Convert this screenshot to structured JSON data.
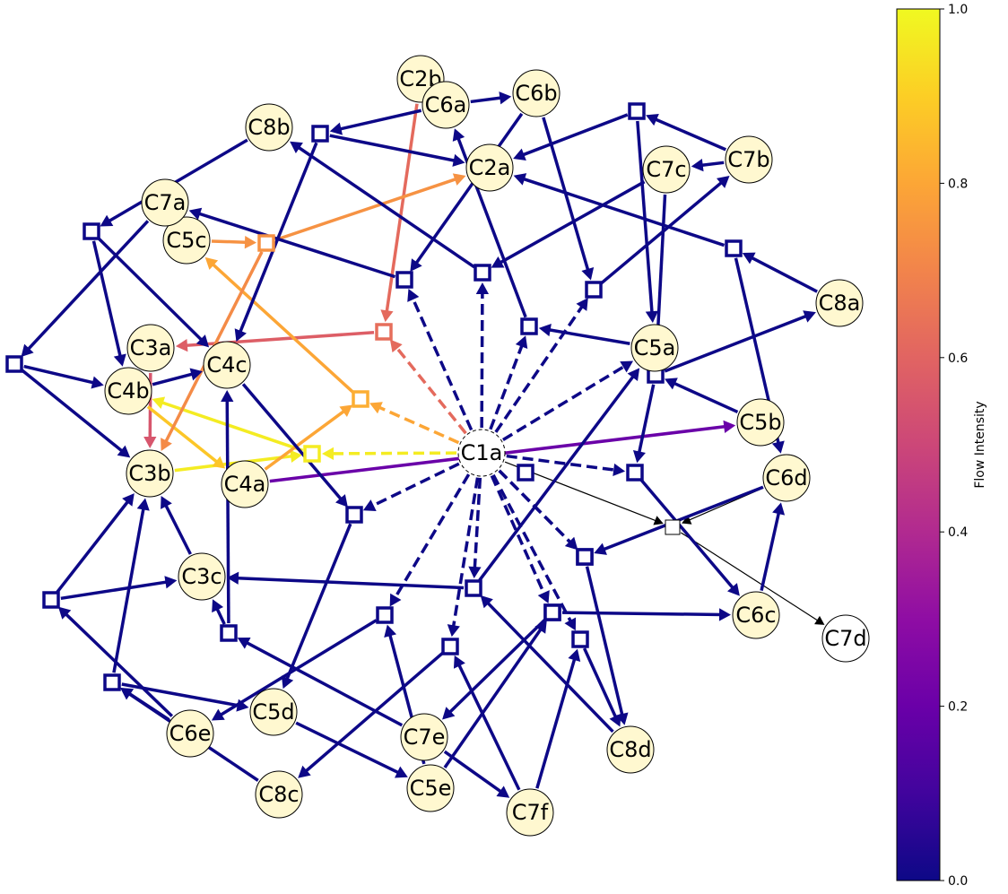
{
  "colorbar": {
    "label": "Flow Intensity",
    "ticks": [
      "0.0",
      "0.2",
      "0.4",
      "0.6",
      "0.8",
      "1.0"
    ],
    "tick_values": [
      0.0,
      0.2,
      0.4,
      0.6,
      0.8,
      1.0
    ],
    "colormap": "plasma"
  },
  "colors": {
    "concept_fill": "#fff8d0",
    "source_fill": "#ffffff",
    "neutral_edge": "#000000",
    "junction_default_stroke": "#0d0887"
  },
  "nodes": [
    {
      "id": "C1a",
      "label": "C1a",
      "kind": "source"
    },
    {
      "id": "C2a",
      "label": "C2a",
      "kind": "concept"
    },
    {
      "id": "C2b",
      "label": "C2b",
      "kind": "concept"
    },
    {
      "id": "C3a",
      "label": "C3a",
      "kind": "concept"
    },
    {
      "id": "C3b",
      "label": "C3b",
      "kind": "concept"
    },
    {
      "id": "C3c",
      "label": "C3c",
      "kind": "concept"
    },
    {
      "id": "C4a",
      "label": "C4a",
      "kind": "concept"
    },
    {
      "id": "C4b",
      "label": "C4b",
      "kind": "concept"
    },
    {
      "id": "C4c",
      "label": "C4c",
      "kind": "concept"
    },
    {
      "id": "C5a",
      "label": "C5a",
      "kind": "concept"
    },
    {
      "id": "C5b",
      "label": "C5b",
      "kind": "concept"
    },
    {
      "id": "C5c",
      "label": "C5c",
      "kind": "concept"
    },
    {
      "id": "C5d",
      "label": "C5d",
      "kind": "concept"
    },
    {
      "id": "C5e",
      "label": "C5e",
      "kind": "concept"
    },
    {
      "id": "C6a",
      "label": "C6a",
      "kind": "concept"
    },
    {
      "id": "C6b",
      "label": "C6b",
      "kind": "concept"
    },
    {
      "id": "C6c",
      "label": "C6c",
      "kind": "concept"
    },
    {
      "id": "C6d",
      "label": "C6d",
      "kind": "concept"
    },
    {
      "id": "C6e",
      "label": "C6e",
      "kind": "concept"
    },
    {
      "id": "C7a",
      "label": "C7a",
      "kind": "concept"
    },
    {
      "id": "C7b",
      "label": "C7b",
      "kind": "concept"
    },
    {
      "id": "C7c",
      "label": "C7c",
      "kind": "concept"
    },
    {
      "id": "C7d",
      "label": "C7d",
      "kind": "plain"
    },
    {
      "id": "C7e",
      "label": "C7e",
      "kind": "concept"
    },
    {
      "id": "C7f",
      "label": "C7f",
      "kind": "concept"
    },
    {
      "id": "C8a",
      "label": "C8a",
      "kind": "concept"
    },
    {
      "id": "C8b",
      "label": "C8b",
      "kind": "concept"
    },
    {
      "id": "C8c",
      "label": "C8c",
      "kind": "concept"
    },
    {
      "id": "C8d",
      "label": "C8d",
      "kind": "concept"
    }
  ],
  "junctions": [
    {
      "id": "J1",
      "intensity": 0.0
    },
    {
      "id": "J2",
      "intensity": 0.0
    },
    {
      "id": "J3",
      "intensity": 0.0
    },
    {
      "id": "J4",
      "intensity": 0.0
    },
    {
      "id": "J5",
      "intensity": 0.0
    },
    {
      "id": "J6",
      "intensity": 0.0
    },
    {
      "id": "J7",
      "intensity": 0.0
    },
    {
      "id": "J8",
      "intensity": 0.0
    },
    {
      "id": "J9",
      "intensity": 0.0
    },
    {
      "id": "J10",
      "intensity": 0.63
    },
    {
      "id": "J11",
      "intensity": 0.0
    },
    {
      "id": "J12",
      "intensity": 0.82
    },
    {
      "id": "J13",
      "intensity": 0.97
    },
    {
      "id": "J14",
      "intensity": 0.0
    },
    {
      "id": "J15",
      "intensity": 0.0
    },
    {
      "id": "J16",
      "intensity": 0.0
    },
    {
      "id": "J17",
      "intensity": 0.0
    },
    {
      "id": "J18",
      "intensity": 0.0
    },
    {
      "id": "J19",
      "intensity": 0.0
    },
    {
      "id": "J20",
      "intensity": 0.0
    },
    {
      "id": "J21",
      "intensity": 0.0
    },
    {
      "id": "J22",
      "intensity": 0.0
    },
    {
      "id": "J23",
      "intensity": 0.0
    },
    {
      "id": "J24",
      "intensity": 0.0
    },
    {
      "id": "J25",
      "intensity": 0.0
    },
    {
      "id": "J26",
      "intensity": 0.0
    },
    {
      "id": "J27",
      "intensity": 0.0
    },
    {
      "id": "J28",
      "intensity": null
    },
    {
      "id": "J29",
      "intensity": 0.74
    }
  ],
  "edges": [
    {
      "from": "C1a",
      "to": "J13",
      "intensity": 0.97,
      "dashed": true
    },
    {
      "from": "C1a",
      "to": "J12",
      "intensity": 0.8,
      "dashed": true
    },
    {
      "from": "C1a",
      "to": "J10",
      "intensity": 0.62,
      "dashed": true
    },
    {
      "from": "C1a",
      "to": "J7",
      "intensity": 0.0,
      "dashed": true
    },
    {
      "from": "C1a",
      "to": "J8",
      "intensity": 0.0,
      "dashed": true
    },
    {
      "from": "C1a",
      "to": "J11",
      "intensity": 0.0,
      "dashed": true
    },
    {
      "from": "C1a",
      "to": "J9",
      "intensity": 0.0,
      "dashed": true
    },
    {
      "from": "C1a",
      "to": "C5a",
      "intensity": 0.0,
      "dashed": true
    },
    {
      "from": "C1a",
      "to": "J15",
      "intensity": 0.0,
      "dashed": true
    },
    {
      "from": "C1a",
      "to": "J16",
      "intensity": 0.0,
      "dashed": true
    },
    {
      "from": "C1a",
      "to": "J18",
      "intensity": 0.0,
      "dashed": true
    },
    {
      "from": "C1a",
      "to": "J23",
      "intensity": 0.0,
      "dashed": true
    },
    {
      "from": "C1a",
      "to": "J24",
      "intensity": 0.0,
      "dashed": true
    },
    {
      "from": "C1a",
      "to": "J25",
      "intensity": 0.0,
      "dashed": true
    },
    {
      "from": "C1a",
      "to": "J26",
      "intensity": 0.0,
      "dashed": true
    },
    {
      "from": "C1a",
      "to": "J20",
      "intensity": 0.0,
      "dashed": true
    },
    {
      "from": "C1a",
      "to": "J14",
      "intensity": 0.0,
      "dashed": true
    },
    {
      "from": "C1a",
      "to": "J28",
      "intensity": null,
      "dashed": false
    },
    {
      "from": "J28",
      "to": "C7d",
      "intensity": null,
      "dashed": false
    },
    {
      "from": "C6d",
      "to": "J28",
      "intensity": null,
      "dashed": false
    },
    {
      "from": "C2b",
      "to": "J10",
      "intensity": 0.62
    },
    {
      "from": "C2b",
      "to": "C6a",
      "intensity": 0.68
    },
    {
      "from": "J10",
      "to": "C3a",
      "intensity": 0.58
    },
    {
      "from": "C3a",
      "to": "C3b",
      "intensity": 0.55
    },
    {
      "from": "J13",
      "to": "C4b",
      "intensity": 0.97
    },
    {
      "from": "C3b",
      "to": "J13",
      "intensity": 0.97
    },
    {
      "from": "C4b",
      "to": "C4a",
      "intensity": 0.88
    },
    {
      "from": "J12",
      "to": "C5c",
      "intensity": 0.8
    },
    {
      "from": "C4a",
      "to": "J12",
      "intensity": 0.8
    },
    {
      "from": "C5c",
      "to": "J29",
      "intensity": 0.74
    },
    {
      "from": "J29",
      "to": "C2a",
      "intensity": 0.74
    },
    {
      "from": "J29",
      "to": "C3b",
      "intensity": 0.72
    },
    {
      "from": "C4a",
      "to": "C5b",
      "intensity": 0.2
    },
    {
      "from": "C6a",
      "to": "C6b",
      "intensity": 0.0
    },
    {
      "from": "C6a",
      "to": "J1",
      "intensity": 0.0
    },
    {
      "from": "J1",
      "to": "C2a",
      "intensity": 0.0
    },
    {
      "from": "J1",
      "to": "C4c",
      "intensity": 0.0
    },
    {
      "from": "C8b",
      "to": "J3",
      "intensity": 0.0
    },
    {
      "from": "J3",
      "to": "C4c",
      "intensity": 0.0
    },
    {
      "from": "J3",
      "to": "C4b",
      "intensity": 0.0
    },
    {
      "from": "C7a",
      "to": "J4",
      "intensity": 0.0
    },
    {
      "from": "J4",
      "to": "C4b",
      "intensity": 0.0
    },
    {
      "from": "J4",
      "to": "C3b",
      "intensity": 0.0
    },
    {
      "from": "C4b",
      "to": "C4c",
      "intensity": 0.0
    },
    {
      "from": "J7",
      "to": "C7a",
      "intensity": 0.0
    },
    {
      "from": "C6b",
      "to": "J7",
      "intensity": 0.0
    },
    {
      "from": "C6b",
      "to": "J9",
      "intensity": 0.0
    },
    {
      "from": "J8",
      "to": "C8b",
      "intensity": 0.0
    },
    {
      "from": "C7c",
      "to": "J8",
      "intensity": 0.0
    },
    {
      "from": "J11",
      "to": "C6a",
      "intensity": 0.0
    },
    {
      "from": "C5a",
      "to": "J11",
      "intensity": 0.0
    },
    {
      "from": "C7b",
      "to": "J2",
      "intensity": 0.0
    },
    {
      "from": "J2",
      "to": "C2a",
      "intensity": 0.0
    },
    {
      "from": "J2",
      "to": "C5a",
      "intensity": 0.0
    },
    {
      "from": "C7b",
      "to": "C7c",
      "intensity": 0.0
    },
    {
      "from": "C7c",
      "to": "J5",
      "intensity": 0.0
    },
    {
      "from": "J9",
      "to": "C7b",
      "intensity": 0.0
    },
    {
      "from": "C8a",
      "to": "J6",
      "intensity": 0.0
    },
    {
      "from": "J6",
      "to": "C2a",
      "intensity": 0.0
    },
    {
      "from": "J6",
      "to": "C6d",
      "intensity": 0.0
    },
    {
      "from": "J5",
      "to": "C8a",
      "intensity": 0.0
    },
    {
      "from": "C5b",
      "to": "J5",
      "intensity": 0.0
    },
    {
      "from": "J5",
      "to": "J15",
      "intensity": 0.0
    },
    {
      "from": "J15",
      "to": "C6c",
      "intensity": 0.0
    },
    {
      "from": "C6c",
      "to": "C6d",
      "intensity": 0.0
    },
    {
      "from": "C6d",
      "to": "J20",
      "intensity": 0.0
    },
    {
      "from": "J20",
      "to": "C8d",
      "intensity": 0.0
    },
    {
      "from": "C4c",
      "to": "J14",
      "intensity": 0.0
    },
    {
      "from": "J14",
      "to": "C5d",
      "intensity": 0.0
    },
    {
      "from": "J16",
      "to": "C3c",
      "intensity": 0.0
    },
    {
      "from": "J16",
      "to": "C5a",
      "intensity": 0.0
    },
    {
      "from": "C8d",
      "to": "J16",
      "intensity": 0.0
    },
    {
      "from": "J26",
      "to": "C6c",
      "intensity": 0.0
    },
    {
      "from": "J26",
      "to": "C7e",
      "intensity": 0.0
    },
    {
      "from": "C5e",
      "to": "J26",
      "intensity": 0.0
    },
    {
      "from": "J23",
      "to": "C6e",
      "intensity": 0.0
    },
    {
      "from": "C5e",
      "to": "J23",
      "intensity": 0.0
    },
    {
      "from": "J24",
      "to": "C8c",
      "intensity": 0.0
    },
    {
      "from": "C7f",
      "to": "J24",
      "intensity": 0.0
    },
    {
      "from": "C7f",
      "to": "J25",
      "intensity": 0.0
    },
    {
      "from": "J25",
      "to": "C8d",
      "intensity": 0.0
    },
    {
      "from": "C7e",
      "to": "J19",
      "intensity": 0.0
    },
    {
      "from": "J19",
      "to": "C3c",
      "intensity": 0.0
    },
    {
      "from": "J19",
      "to": "C4c",
      "intensity": 0.0
    },
    {
      "from": "C5d",
      "to": "C5e",
      "intensity": 0.0
    },
    {
      "from": "C6e",
      "to": "J21",
      "intensity": 0.0
    },
    {
      "from": "C6e",
      "to": "J22",
      "intensity": 0.0
    },
    {
      "from": "J21",
      "to": "C5d",
      "intensity": 0.0
    },
    {
      "from": "J21",
      "to": "C3b",
      "intensity": 0.0
    },
    {
      "from": "J22",
      "to": "C3c",
      "intensity": 0.0
    },
    {
      "from": "J22",
      "to": "C3b",
      "intensity": 0.0
    },
    {
      "from": "C8c",
      "to": "J21",
      "intensity": 0.0
    },
    {
      "from": "C3c",
      "to": "C3b",
      "intensity": 0.0
    },
    {
      "from": "C7e",
      "to": "C7f",
      "intensity": 0.0
    }
  ]
}
